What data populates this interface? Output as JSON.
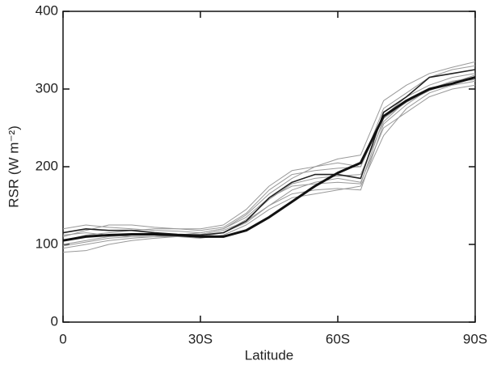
{
  "chart_data": {
    "type": "line",
    "xlabel": "Latitude",
    "ylabel": "RSR (W m⁻²)",
    "x": [
      0,
      5,
      10,
      15,
      20,
      25,
      30,
      35,
      40,
      45,
      50,
      55,
      60,
      65,
      70,
      75,
      80,
      85,
      90
    ],
    "xlim": [
      0,
      90
    ],
    "xticks": [
      0,
      {
        "value": 30,
        "label": "30S"
      },
      {
        "value": 60,
        "label": "60S"
      },
      {
        "value": 90,
        "label": "90S"
      }
    ],
    "ylim": [
      0,
      400
    ],
    "yticks": [
      0,
      100,
      200,
      300,
      400
    ],
    "grid": false,
    "series": [
      {
        "color": "#999999",
        "linewidth": 1,
        "values": [
          95,
          100,
          105,
          108,
          110,
          112,
          113,
          118,
          130,
          150,
          165,
          170,
          172,
          170,
          255,
          280,
          300,
          310,
          315
        ]
      },
      {
        "color": "#999999",
        "linewidth": 1,
        "values": [
          110,
          118,
          125,
          125,
          122,
          120,
          118,
          122,
          140,
          170,
          190,
          195,
          198,
          200,
          275,
          295,
          315,
          325,
          330
        ]
      },
      {
        "color": "#999999",
        "linewidth": 1,
        "values": [
          100,
          105,
          110,
          112,
          112,
          110,
          108,
          112,
          125,
          145,
          160,
          165,
          170,
          175,
          240,
          275,
          295,
          305,
          310
        ]
      },
      {
        "color": "#999999",
        "linewidth": 1,
        "values": [
          120,
          125,
          122,
          120,
          118,
          117,
          115,
          120,
          138,
          165,
          185,
          200,
          210,
          215,
          285,
          305,
          320,
          328,
          335
        ]
      },
      {
        "color": "#999999",
        "linewidth": 1,
        "values": [
          90,
          92,
          100,
          105,
          108,
          110,
          112,
          115,
          128,
          150,
          170,
          180,
          185,
          180,
          250,
          270,
          290,
          300,
          305
        ]
      },
      {
        "color": "#999999",
        "linewidth": 1,
        "values": [
          105,
          112,
          115,
          118,
          120,
          120,
          120,
          125,
          145,
          175,
          195,
          200,
          205,
          200,
          265,
          290,
          305,
          315,
          320
        ]
      },
      {
        "color": "#999999",
        "linewidth": 1,
        "values": [
          98,
          103,
          108,
          110,
          110,
          110,
          110,
          115,
          132,
          158,
          178,
          185,
          188,
          190,
          258,
          285,
          300,
          310,
          312
        ]
      },
      {
        "color": "#999999",
        "linewidth": 1,
        "values": [
          112,
          115,
          112,
          110,
          110,
          112,
          115,
          120,
          135,
          160,
          175,
          178,
          180,
          178,
          262,
          283,
          298,
          308,
          318
        ]
      },
      {
        "color": "#222222",
        "linewidth": 1.6,
        "values": [
          115,
          120,
          118,
          118,
          115,
          113,
          112,
          115,
          130,
          160,
          180,
          190,
          190,
          185,
          270,
          290,
          315,
          320,
          325
        ]
      },
      {
        "color": "#111111",
        "linewidth": 3,
        "values": [
          105,
          110,
          112,
          113,
          113,
          112,
          110,
          110,
          118,
          135,
          155,
          175,
          192,
          205,
          265,
          285,
          300,
          307,
          315
        ]
      }
    ]
  }
}
